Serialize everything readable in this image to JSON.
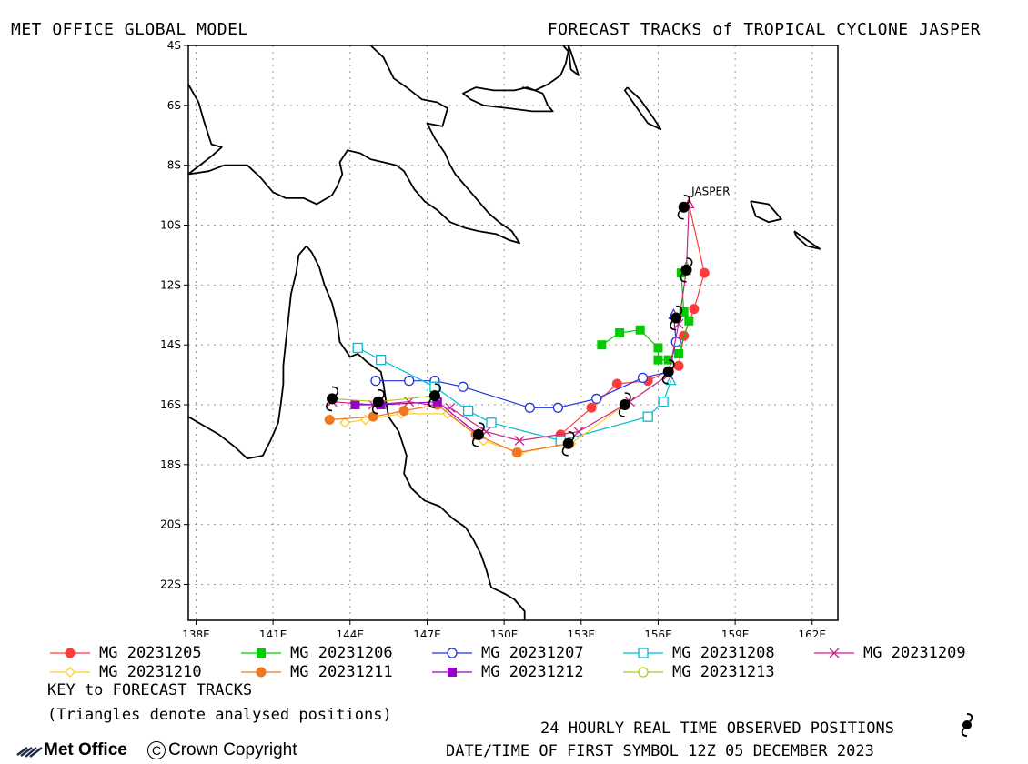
{
  "header": {
    "left": "MET OFFICE GLOBAL MODEL",
    "right": "FORECAST TRACKS of TROPICAL CYCLONE JASPER"
  },
  "map": {
    "lon_range": [
      137.7,
      163.0
    ],
    "lat_range": [
      -23.2,
      -4.0
    ],
    "lon_ticks": [
      {
        "v": 138,
        "label": "138E"
      },
      {
        "v": 141,
        "label": "141E"
      },
      {
        "v": 144,
        "label": "144E"
      },
      {
        "v": 147,
        "label": "147E"
      },
      {
        "v": 150,
        "label": "150E"
      },
      {
        "v": 153,
        "label": "153E"
      },
      {
        "v": 156,
        "label": "156E"
      },
      {
        "v": 159,
        "label": "159E"
      },
      {
        "v": 162,
        "label": "162E"
      }
    ],
    "lat_ticks": [
      {
        "v": -4,
        "label": "4S"
      },
      {
        "v": -6,
        "label": "6S"
      },
      {
        "v": -8,
        "label": "8S"
      },
      {
        "v": -10,
        "label": "10S"
      },
      {
        "v": -12,
        "label": "12S"
      },
      {
        "v": -14,
        "label": "14S"
      },
      {
        "v": -16,
        "label": "16S"
      },
      {
        "v": -18,
        "label": "18S"
      },
      {
        "v": -20,
        "label": "20S"
      },
      {
        "v": -22,
        "label": "22S"
      }
    ],
    "storm_label": "JASPER",
    "coastlines": [
      [
        [
          137.7,
          -5.3
        ],
        [
          138.1,
          -5.9
        ],
        [
          138.3,
          -6.5
        ],
        [
          138.6,
          -7.3
        ],
        [
          139.0,
          -7.4
        ],
        [
          138.6,
          -7.7
        ],
        [
          137.7,
          -8.3
        ]
      ],
      [
        [
          137.7,
          -8.3
        ],
        [
          138.5,
          -8.2
        ],
        [
          139.1,
          -8.0
        ],
        [
          140.0,
          -8.0
        ],
        [
          140.5,
          -8.4
        ],
        [
          141.0,
          -8.9
        ],
        [
          141.5,
          -9.1
        ],
        [
          142.2,
          -9.1
        ],
        [
          142.7,
          -9.3
        ],
        [
          143.3,
          -9.0
        ],
        [
          143.5,
          -8.7
        ],
        [
          143.7,
          -8.3
        ],
        [
          143.6,
          -7.9
        ],
        [
          143.9,
          -7.5
        ],
        [
          144.4,
          -7.6
        ],
        [
          144.8,
          -7.8
        ],
        [
          145.3,
          -7.9
        ],
        [
          145.8,
          -8.0
        ],
        [
          146.1,
          -8.2
        ],
        [
          146.5,
          -8.8
        ],
        [
          146.9,
          -9.2
        ],
        [
          147.4,
          -9.5
        ],
        [
          147.9,
          -9.9
        ],
        [
          148.5,
          -10.1
        ],
        [
          149.0,
          -10.2
        ],
        [
          149.7,
          -10.3
        ],
        [
          150.2,
          -10.5
        ],
        [
          150.6,
          -10.6
        ],
        [
          150.3,
          -10.2
        ],
        [
          149.8,
          -9.9
        ],
        [
          149.4,
          -9.6
        ],
        [
          149.1,
          -9.3
        ],
        [
          148.8,
          -9.0
        ],
        [
          148.5,
          -8.7
        ],
        [
          148.1,
          -8.3
        ],
        [
          147.9,
          -8.0
        ],
        [
          147.7,
          -7.6
        ],
        [
          147.3,
          -7.1
        ],
        [
          147.0,
          -6.6
        ],
        [
          147.6,
          -6.7
        ],
        [
          147.8,
          -6.1
        ],
        [
          147.4,
          -5.9
        ],
        [
          146.8,
          -5.8
        ],
        [
          146.2,
          -5.4
        ],
        [
          145.7,
          -5.1
        ],
        [
          145.3,
          -4.4
        ],
        [
          144.8,
          -4.0
        ]
      ],
      [
        [
          150.7,
          -5.4
        ],
        [
          151.2,
          -5.5
        ],
        [
          151.7,
          -5.3
        ],
        [
          152.2,
          -5.0
        ],
        [
          152.4,
          -4.6
        ],
        [
          152.5,
          -4.2
        ],
        [
          152.3,
          -4.0
        ]
      ],
      [
        [
          149.6,
          -5.5
        ],
        [
          150.0,
          -5.5
        ],
        [
          150.4,
          -5.5
        ],
        [
          150.9,
          -5.4
        ],
        [
          151.5,
          -5.6
        ],
        [
          151.7,
          -6.0
        ],
        [
          151.9,
          -6.2
        ],
        [
          151.1,
          -6.2
        ],
        [
          150.2,
          -6.1
        ],
        [
          149.2,
          -6.0
        ],
        [
          148.7,
          -5.8
        ],
        [
          148.4,
          -5.6
        ],
        [
          148.9,
          -5.4
        ],
        [
          149.6,
          -5.5
        ]
      ],
      [
        [
          152.5,
          -4.0
        ],
        [
          152.6,
          -4.8
        ],
        [
          152.9,
          -5.0
        ],
        [
          152.6,
          -4.2
        ],
        [
          152.5,
          -4.0
        ]
      ],
      [
        [
          154.8,
          -5.4
        ],
        [
          155.3,
          -5.8
        ],
        [
          155.8,
          -6.4
        ],
        [
          156.1,
          -6.8
        ],
        [
          155.6,
          -6.6
        ],
        [
          155.1,
          -6.0
        ],
        [
          154.7,
          -5.5
        ],
        [
          154.8,
          -5.4
        ]
      ],
      [
        [
          159.6,
          -9.2
        ],
        [
          160.3,
          -9.3
        ],
        [
          160.8,
          -9.8
        ],
        [
          160.3,
          -9.9
        ],
        [
          159.8,
          -9.7
        ],
        [
          159.6,
          -9.2
        ]
      ],
      [
        [
          161.3,
          -10.2
        ],
        [
          161.8,
          -10.5
        ],
        [
          162.3,
          -10.8
        ],
        [
          161.8,
          -10.7
        ],
        [
          161.4,
          -10.4
        ],
        [
          161.3,
          -10.2
        ]
      ],
      [
        [
          142.3,
          -10.7
        ],
        [
          142.5,
          -10.9
        ],
        [
          142.8,
          -11.4
        ],
        [
          143.0,
          -12.0
        ],
        [
          143.3,
          -12.6
        ],
        [
          143.5,
          -13.3
        ],
        [
          143.6,
          -13.9
        ],
        [
          144.0,
          -14.4
        ],
        [
          144.3,
          -14.3
        ],
        [
          144.7,
          -14.6
        ],
        [
          145.2,
          -14.9
        ],
        [
          145.3,
          -15.3
        ],
        [
          145.4,
          -15.9
        ],
        [
          145.5,
          -16.4
        ],
        [
          145.9,
          -16.9
        ],
        [
          146.2,
          -17.7
        ],
        [
          146.1,
          -18.3
        ],
        [
          146.4,
          -18.8
        ],
        [
          146.9,
          -19.2
        ],
        [
          147.5,
          -19.4
        ],
        [
          148.0,
          -19.8
        ],
        [
          148.5,
          -20.1
        ],
        [
          148.8,
          -20.5
        ],
        [
          149.1,
          -21.0
        ],
        [
          149.3,
          -21.5
        ],
        [
          149.5,
          -22.1
        ],
        [
          150.0,
          -22.3
        ],
        [
          150.4,
          -22.5
        ],
        [
          150.8,
          -22.9
        ],
        [
          150.8,
          -23.2
        ]
      ],
      [
        [
          142.3,
          -10.7
        ],
        [
          142.0,
          -11.0
        ],
        [
          141.9,
          -11.6
        ],
        [
          141.7,
          -12.3
        ],
        [
          141.6,
          -13.1
        ],
        [
          141.5,
          -13.9
        ],
        [
          141.4,
          -14.7
        ],
        [
          141.4,
          -15.3
        ],
        [
          141.3,
          -16.0
        ],
        [
          141.2,
          -16.6
        ],
        [
          140.9,
          -17.2
        ],
        [
          140.6,
          -17.7
        ],
        [
          140.0,
          -17.8
        ],
        [
          139.5,
          -17.4
        ],
        [
          138.9,
          -17.0
        ],
        [
          138.3,
          -16.7
        ],
        [
          137.7,
          -16.4
        ]
      ]
    ]
  },
  "observed": [
    {
      "lon": 157.0,
      "lat": -9.4
    },
    {
      "lon": 157.1,
      "lat": -11.5
    },
    {
      "lon": 156.7,
      "lat": -13.1
    },
    {
      "lon": 156.4,
      "lat": -14.9
    },
    {
      "lon": 154.7,
      "lat": -16.0
    },
    {
      "lon": 152.5,
      "lat": -17.3
    },
    {
      "lon": 149.0,
      "lat": -17.0
    },
    {
      "lon": 147.3,
      "lat": -15.7
    },
    {
      "lon": 145.1,
      "lat": -15.9
    },
    {
      "lon": 143.3,
      "lat": -15.8
    }
  ],
  "tracks": [
    {
      "name": "MG 20231205",
      "color": "#ff3a3a",
      "marker": "filled-circle",
      "points": [
        [
          157.2,
          -9.3
        ],
        [
          157.8,
          -11.6
        ],
        [
          157.4,
          -12.8
        ],
        [
          157.0,
          -13.7
        ],
        [
          156.8,
          -14.7
        ],
        [
          155.6,
          -15.2
        ],
        [
          154.4,
          -15.3
        ],
        [
          153.4,
          -16.1
        ],
        [
          152.2,
          -17.0
        ]
      ]
    },
    {
      "name": "MG 20231206",
      "color": "#00cc00",
      "marker": "filled-square",
      "points": [
        [
          157.1,
          -11.4
        ],
        [
          156.9,
          -11.6
        ],
        [
          157.0,
          -12.9
        ],
        [
          157.2,
          -13.2
        ],
        [
          156.8,
          -14.3
        ],
        [
          156.4,
          -14.5
        ],
        [
          156.0,
          -14.5
        ],
        [
          156.0,
          -14.1
        ],
        [
          155.3,
          -13.5
        ],
        [
          154.5,
          -13.6
        ],
        [
          153.8,
          -14.0
        ]
      ]
    },
    {
      "name": "MG 20231207",
      "color": "#2233dd",
      "marker": "open-circle",
      "points": [
        [
          156.6,
          -13.0
        ],
        [
          156.7,
          -13.9
        ],
        [
          156.4,
          -14.9
        ],
        [
          155.4,
          -15.1
        ],
        [
          153.6,
          -15.8
        ],
        [
          152.1,
          -16.1
        ],
        [
          151.0,
          -16.1
        ],
        [
          148.4,
          -15.4
        ],
        [
          147.3,
          -15.2
        ],
        [
          146.3,
          -15.2
        ],
        [
          145.0,
          -15.2
        ]
      ]
    },
    {
      "name": "MG 20231208",
      "color": "#00bbcc",
      "marker": "open-square",
      "points": [
        [
          156.5,
          -15.2
        ],
        [
          156.2,
          -15.9
        ],
        [
          155.6,
          -16.4
        ],
        [
          152.2,
          -17.2
        ],
        [
          149.5,
          -16.6
        ],
        [
          148.6,
          -16.2
        ],
        [
          147.3,
          -15.4
        ],
        [
          145.2,
          -14.5
        ],
        [
          144.3,
          -14.1
        ]
      ]
    },
    {
      "name": "MG 20231209",
      "color": "#cc2288",
      "marker": "cross",
      "points": [
        [
          157.2,
          -9.3
        ],
        [
          157.1,
          -11.5
        ],
        [
          156.8,
          -13.3
        ],
        [
          156.4,
          -15.0
        ],
        [
          154.9,
          -15.9
        ],
        [
          152.9,
          -16.9
        ],
        [
          150.6,
          -17.2
        ],
        [
          149.3,
          -16.9
        ],
        [
          147.9,
          -16.1
        ],
        [
          146.3,
          -15.9
        ],
        [
          144.9,
          -16.0
        ],
        [
          143.3,
          -15.9
        ]
      ]
    },
    {
      "name": "MG 20231210",
      "color": "#ffcc33",
      "marker": "open-diamond",
      "points": [
        [
          154.7,
          -16.0
        ],
        [
          152.6,
          -17.3
        ],
        [
          150.6,
          -17.6
        ],
        [
          149.2,
          -17.2
        ],
        [
          147.8,
          -16.3
        ],
        [
          146.0,
          -16.3
        ],
        [
          144.6,
          -16.5
        ],
        [
          143.8,
          -16.6
        ]
      ]
    },
    {
      "name": "MG 20231211",
      "color": "#ee7722",
      "marker": "filled-circle",
      "points": [
        [
          152.5,
          -17.3
        ],
        [
          150.5,
          -17.6
        ],
        [
          148.9,
          -17.0
        ],
        [
          147.4,
          -16.0
        ],
        [
          146.1,
          -16.2
        ],
        [
          144.9,
          -16.4
        ],
        [
          143.2,
          -16.5
        ]
      ]
    },
    {
      "name": "MG 20231212",
      "color": "#9900cc",
      "marker": "filled-square",
      "points": [
        [
          149.0,
          -17.0
        ],
        [
          147.4,
          -15.9
        ],
        [
          145.2,
          -16.0
        ],
        [
          144.2,
          -16.0
        ]
      ]
    },
    {
      "name": "MG 20231213",
      "color": "#aacc22",
      "marker": "open-circle",
      "points": [
        [
          147.3,
          -15.7
        ],
        [
          145.1,
          -15.9
        ],
        [
          143.3,
          -15.8
        ]
      ]
    }
  ],
  "legend_labels": [
    "MG 20231205",
    "MG 20231206",
    "MG 20231207",
    "MG 20231208",
    "MG 20231209",
    "MG 20231210",
    "MG 20231211",
    "MG 20231212",
    "MG 20231213"
  ],
  "footer": {
    "key_title": "KEY to FORECAST TRACKS",
    "triangles_note": "(Triangles denote analysed positions)",
    "observed_note": "24 HOURLY REAL TIME OBSERVED POSITIONS",
    "datetime": "DATE/TIME OF FIRST SYMBOL 12Z 05 DECEMBER 2023",
    "brand": "Met Office",
    "copyright": "Crown Copyright"
  }
}
